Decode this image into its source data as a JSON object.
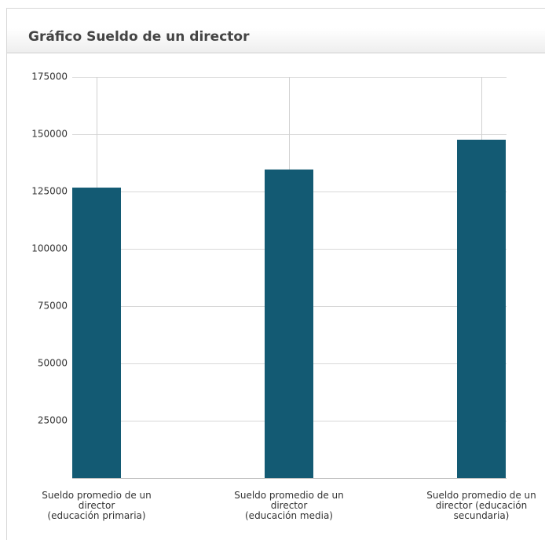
{
  "chart_data": {
    "type": "bar",
    "title": "Gráfico Sueldo de un director",
    "categories": [
      "Sueldo promedio de un director\n(educación primaria)",
      "Sueldo promedio de un director\n(educación media)",
      "Sueldo promedio de un director (educación secundaria)"
    ],
    "values": [
      126700,
      134600,
      147600
    ],
    "color": "#135a73",
    "ylim": [
      0,
      175000
    ],
    "yticks": [
      25000,
      50000,
      75000,
      100000,
      125000,
      150000,
      175000
    ],
    "grid": true
  }
}
